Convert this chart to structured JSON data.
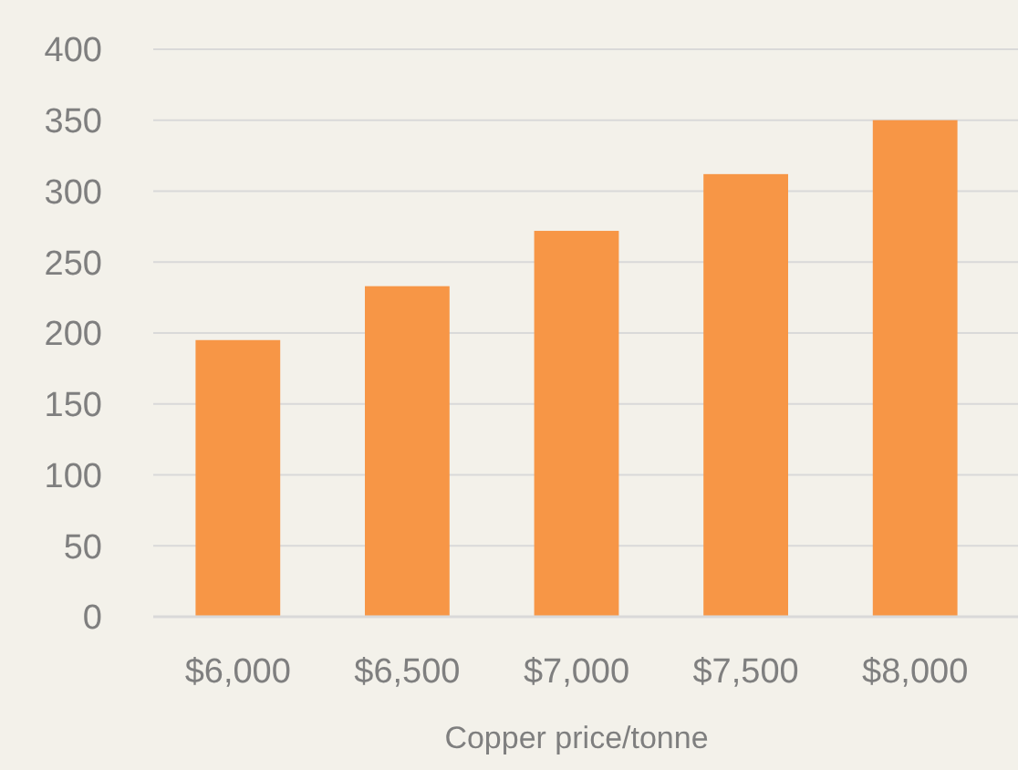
{
  "chart_data": {
    "type": "bar",
    "xlabel": "Copper price/tonne",
    "categories": [
      "$6,000",
      "$6,500",
      "$7,000",
      "$7,500",
      "$8,000"
    ],
    "values": [
      195,
      233,
      272,
      312,
      350
    ],
    "color": "#f79646",
    "ylim": [
      0,
      400
    ],
    "yticks": [
      0,
      50,
      100,
      150,
      200,
      250,
      300,
      350,
      400
    ],
    "grid": "y"
  }
}
